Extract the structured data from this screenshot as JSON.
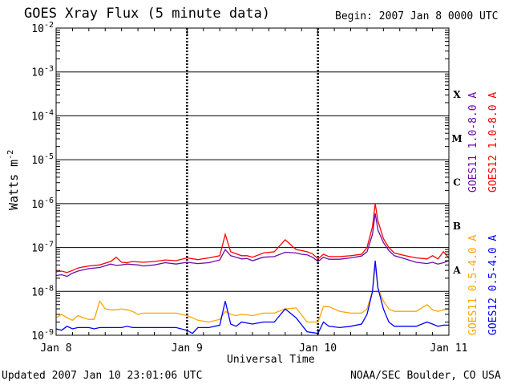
{
  "header": {
    "title": "GOES Xray Flux (5 minute data)",
    "begin": "Begin:  2007 Jan 8 0000 UTC"
  },
  "footer": {
    "updated": "Updated 2007 Jan 10 23:01:06 UTC",
    "credit": "NOAA/SEC Boulder, CO USA"
  },
  "chart_data": {
    "type": "line",
    "title": "GOES Xray Flux (5 minute data)",
    "xlabel": "Universal Time",
    "ylabel": "Watts m-2",
    "ylabel_main": "Watts m",
    "ylabel_exp": "-2",
    "yscale": "log",
    "ylim": [
      1e-09,
      0.01
    ],
    "xlim": [
      0,
      72
    ],
    "x_unit": "hours since 2007 Jan 8 0000 UTC",
    "x_ticks": [
      {
        "x": 0,
        "label": "Jan 8"
      },
      {
        "x": 24,
        "label": "Jan 9"
      },
      {
        "x": 48,
        "label": "Jan 10"
      },
      {
        "x": 72,
        "label": "Jan 11"
      }
    ],
    "y_ticks": [
      {
        "exp": -9,
        "base": "10",
        "sup": "-9"
      },
      {
        "exp": -8,
        "base": "10",
        "sup": "-8"
      },
      {
        "exp": -7,
        "base": "10",
        "sup": "-7"
      },
      {
        "exp": -6,
        "base": "10",
        "sup": "-6"
      },
      {
        "exp": -5,
        "base": "10",
        "sup": "-5"
      },
      {
        "exp": -4,
        "base": "10",
        "sup": "-4"
      },
      {
        "exp": -3,
        "base": "10",
        "sup": "-3"
      },
      {
        "exp": -2,
        "base": "10",
        "sup": "-2"
      }
    ],
    "flare_classes": [
      {
        "label": "A",
        "exp": -8
      },
      {
        "label": "B",
        "exp": -7
      },
      {
        "label": "C",
        "exp": -6
      },
      {
        "label": "M",
        "exp": -5
      },
      {
        "label": "X",
        "exp": -4
      }
    ],
    "grid": true,
    "series": [
      {
        "name": "GOES11 1.0-8.0 A",
        "color": "#6a0dad",
        "x": [
          0,
          1,
          2,
          3,
          4,
          5,
          6,
          8,
          10,
          11,
          12,
          13,
          14,
          15,
          16,
          18,
          20,
          22,
          24,
          26,
          28,
          30,
          31,
          32,
          33,
          34,
          35,
          36,
          38,
          40,
          42,
          44,
          45,
          46,
          47,
          48,
          49,
          50,
          52,
          54,
          56,
          57,
          58,
          58.5,
          59,
          60,
          61,
          62,
          64,
          66,
          68,
          69,
          70,
          71,
          72
        ],
        "y": [
          2.3e-08,
          2.4e-08,
          2.2e-08,
          2.6e-08,
          2.9e-08,
          3.1e-08,
          3.3e-08,
          3.5e-08,
          4.2e-08,
          3.9e-08,
          4e-08,
          4.2e-08,
          4.1e-08,
          4e-08,
          3.8e-08,
          4e-08,
          4.5e-08,
          4.2e-08,
          4.6e-08,
          4.3e-08,
          4.5e-08,
          5.2e-08,
          9e-08,
          6.5e-08,
          6e-08,
          5.5e-08,
          5.6e-08,
          5e-08,
          6e-08,
          6.2e-08,
          7.8e-08,
          7.5e-08,
          7e-08,
          6.8e-08,
          6e-08,
          4.8e-08,
          6e-08,
          5.4e-08,
          5.4e-08,
          5.8e-08,
          6.4e-08,
          8e-08,
          2e-07,
          6e-07,
          2.5e-07,
          1.3e-07,
          8.5e-08,
          6.5e-08,
          5.5e-08,
          4.6e-08,
          4.3e-08,
          4.6e-08,
          4.2e-08,
          4.5e-08,
          5e-08
        ]
      },
      {
        "name": "GOES12 1.0-8.0 A",
        "color": "#ff0000",
        "x": [
          0,
          1,
          2,
          3,
          4,
          5,
          6,
          8,
          10,
          11,
          12,
          13,
          14,
          15,
          16,
          18,
          20,
          22,
          24,
          26,
          28,
          30,
          31,
          32,
          33,
          34,
          35,
          36,
          38,
          40,
          42,
          44,
          45,
          46,
          47,
          48,
          49,
          50,
          52,
          54,
          56,
          57,
          58,
          58.5,
          59,
          60,
          61,
          62,
          64,
          66,
          68,
          69,
          70,
          71,
          72
        ],
        "y": [
          2.8e-08,
          2.9e-08,
          2.7e-08,
          3e-08,
          3.4e-08,
          3.6e-08,
          3.8e-08,
          4e-08,
          4.8e-08,
          6e-08,
          4.6e-08,
          4.5e-08,
          4.8e-08,
          4.7e-08,
          4.6e-08,
          4.8e-08,
          5.2e-08,
          5e-08,
          5.8e-08,
          5.3e-08,
          5.8e-08,
          6.5e-08,
          2e-07,
          8e-08,
          7.2e-08,
          6.5e-08,
          6.5e-08,
          6e-08,
          7.5e-08,
          8e-08,
          1.5e-07,
          9e-08,
          8.5e-08,
          8e-08,
          7.2e-08,
          5.5e-08,
          7e-08,
          6.2e-08,
          6.2e-08,
          6.5e-08,
          7e-08,
          1e-07,
          3e-07,
          1e-06,
          4e-07,
          1.6e-07,
          1e-07,
          7.5e-08,
          6.5e-08,
          5.8e-08,
          5.5e-08,
          6.5e-08,
          5.5e-08,
          8e-08,
          5.8e-08
        ]
      },
      {
        "name": "GOES11 0.5-4.0 A",
        "color": "#ffa500",
        "x": [
          0,
          1,
          2,
          3,
          4,
          5,
          6,
          7,
          8,
          9,
          10,
          11,
          12,
          13,
          14,
          15,
          16,
          18,
          20,
          22,
          24,
          25,
          26,
          28,
          30,
          31,
          32,
          33,
          34,
          36,
          38,
          40,
          42,
          44,
          46,
          48,
          49,
          50,
          52,
          54,
          56,
          57,
          58,
          58.5,
          59,
          60,
          61,
          62,
          64,
          66,
          68,
          69,
          70,
          71,
          72
        ],
        "y": [
          2.5e-09,
          3e-09,
          2.5e-09,
          2.2e-09,
          2.8e-09,
          2.5e-09,
          2.3e-09,
          2.3e-09,
          6e-09,
          4e-09,
          3.8e-09,
          3.8e-09,
          4e-09,
          3.8e-09,
          3.5e-09,
          3e-09,
          3.2e-09,
          3.2e-09,
          3.2e-09,
          3.2e-09,
          2.8e-09,
          2.5e-09,
          2.2e-09,
          2e-09,
          2.3e-09,
          3.5e-09,
          3e-09,
          2.8e-09,
          3e-09,
          2.8e-09,
          3.2e-09,
          3.2e-09,
          4e-09,
          4.2e-09,
          2e-09,
          2e-09,
          4.5e-09,
          4.5e-09,
          3.5e-09,
          3.2e-09,
          3.2e-09,
          4e-09,
          1e-08,
          4e-08,
          1.2e-08,
          6e-09,
          4e-09,
          3.5e-09,
          3.5e-09,
          3.5e-09,
          5e-09,
          3.8e-09,
          3.5e-09,
          3.8e-09,
          4e-09
        ]
      },
      {
        "name": "GOES12 0.5-4.0 A",
        "color": "#0000ff",
        "x": [
          0,
          1,
          2,
          3,
          4,
          5,
          6,
          7,
          8,
          9,
          10,
          11,
          12,
          13,
          14,
          15,
          16,
          18,
          20,
          22,
          24,
          25,
          26,
          28,
          30,
          31,
          32,
          33,
          34,
          36,
          38,
          40,
          42,
          44,
          46,
          48,
          49,
          50,
          52,
          54,
          56,
          57,
          58,
          58.5,
          59,
          60,
          61,
          62,
          64,
          66,
          68,
          69,
          70,
          71,
          72
        ],
        "y": [
          1.4e-09,
          1.3e-09,
          1.6e-09,
          1.4e-09,
          1.5e-09,
          1.5e-09,
          1.5e-09,
          1.4e-09,
          1.5e-09,
          1.5e-09,
          1.5e-09,
          1.5e-09,
          1.5e-09,
          1.6e-09,
          1.5e-09,
          1.5e-09,
          1.5e-09,
          1.5e-09,
          1.5e-09,
          1.5e-09,
          1.3e-09,
          1.1e-09,
          1.5e-09,
          1.5e-09,
          1.7e-09,
          6e-09,
          1.8e-09,
          1.6e-09,
          2e-09,
          1.8e-09,
          2e-09,
          2e-09,
          4e-09,
          2.5e-09,
          1.2e-09,
          1.1e-09,
          2e-09,
          1.6e-09,
          1.5e-09,
          1.6e-09,
          1.8e-09,
          3e-09,
          1e-08,
          5e-08,
          1.2e-08,
          4e-09,
          2e-09,
          1.6e-09,
          1.6e-09,
          1.6e-09,
          2e-09,
          1.8e-09,
          1.6e-09,
          1.7e-09,
          1.7e-09
        ]
      }
    ]
  }
}
